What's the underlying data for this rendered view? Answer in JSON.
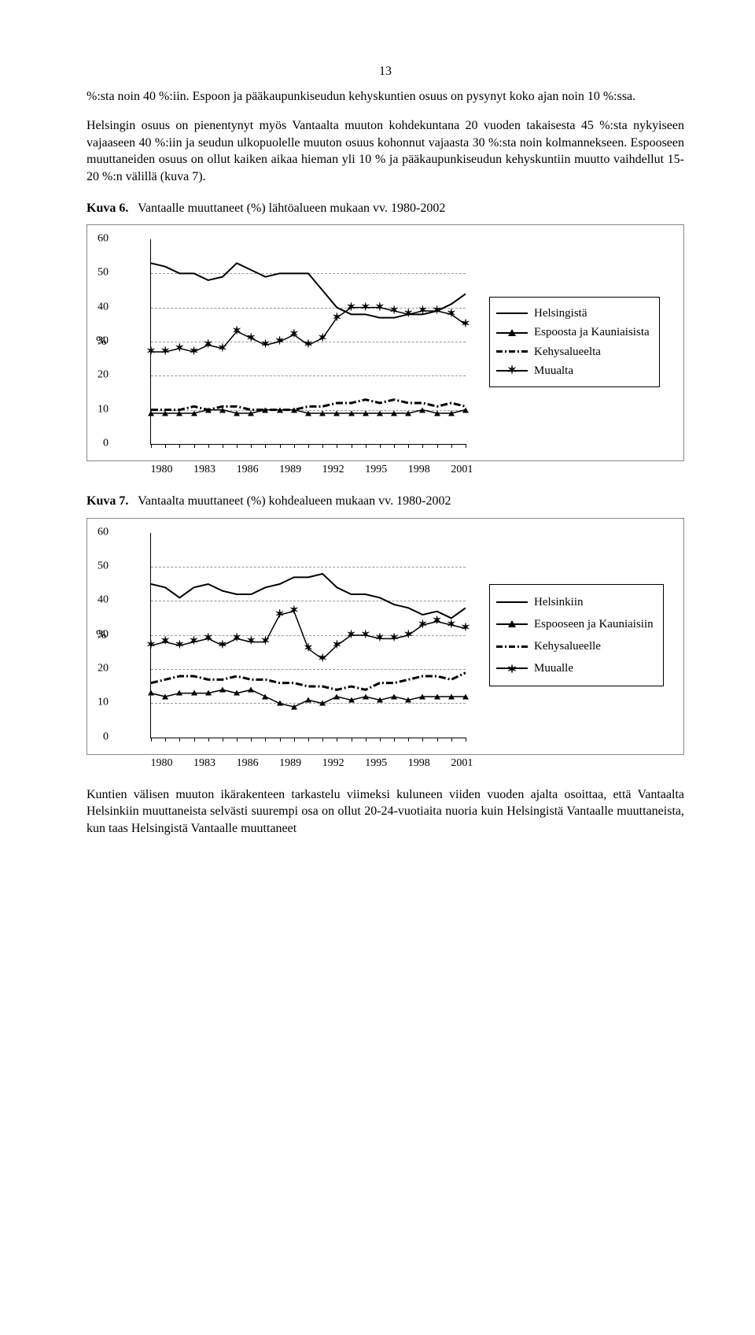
{
  "page_number": "13",
  "para1": "%:sta noin 40 %:iin. Espoon ja pääkaupunkiseudun kehyskuntien osuus on pysynyt koko ajan noin 10 %:ssa.",
  "para2": "Helsingin osuus on pienentynyt myös Vantaalta muuton kohdekuntana 20 vuoden takaisesta 45 %:sta nykyiseen vajaaseen 40 %:iin ja seudun ulkopuolelle muuton osuus kohonnut vajaasta 30 %:sta noin kolmannekseen. Espooseen muuttaneiden osuus on ollut kaiken aikaa hieman yli 10 % ja pääkaupunkiseudun kehyskuntiin muutto vaihdellut 15-20 %:n välillä (kuva 7).",
  "para3": "Kuntien välisen muuton ikärakenteen  tarkastelu viimeksi kuluneen viiden vuoden ajalta osoittaa, että Vantaalta Helsinkiin muuttaneista selvästi suurempi osa on ollut 20-24-vuotiaita nuoria kuin Helsingistä Vantaalle muuttaneista, kun taas Helsingistä Vantaalle muuttaneet",
  "fig6": {
    "label": "Kuva 6.",
    "caption": "Vantaalle muuttaneet (%) lähtöalueen mukaan vv. 1980-2002",
    "ylabel_prefix": "%",
    "ymin": 0,
    "ymax": 60,
    "ystep": 10,
    "xticks": [
      1980,
      1983,
      1986,
      1989,
      1992,
      1995,
      1998,
      2001
    ],
    "xmin": 1980,
    "xmax": 2002,
    "legend": [
      "Helsingistä",
      "Espoosta ja Kauniaisista",
      "Kehysalueelta",
      "Muualta"
    ],
    "series": {
      "helsingista": [
        53,
        52,
        50,
        50,
        48,
        49,
        53,
        51,
        49,
        50,
        50,
        50,
        45,
        40,
        38,
        38,
        37,
        37,
        38,
        38,
        39,
        41,
        44
      ],
      "espoosta": [
        9,
        9,
        9,
        9,
        10,
        10,
        9,
        9,
        10,
        10,
        10,
        9,
        9,
        9,
        9,
        9,
        9,
        9,
        9,
        10,
        9,
        9,
        10
      ],
      "kehys": [
        10,
        10,
        10,
        11,
        10,
        11,
        11,
        10,
        10,
        10,
        10,
        11,
        11,
        12,
        12,
        13,
        12,
        13,
        12,
        12,
        11,
        12,
        11
      ],
      "muualta": [
        27,
        27,
        28,
        27,
        29,
        28,
        33,
        31,
        29,
        30,
        32,
        29,
        31,
        37,
        40,
        40,
        40,
        39,
        38,
        39,
        39,
        38,
        35
      ]
    }
  },
  "fig7": {
    "label": "Kuva 7.",
    "caption": "Vantaalta muuttaneet (%) kohdealueen mukaan vv. 1980-2002",
    "ylabel_prefix": "%",
    "ymin": 0,
    "ymax": 60,
    "ystep": 10,
    "xticks": [
      1980,
      1983,
      1986,
      1989,
      1992,
      1995,
      1998,
      2001
    ],
    "xmin": 1980,
    "xmax": 2002,
    "legend": [
      "Helsinkiin",
      "Espooseen ja Kauniaisiin",
      "Kehysalueelle",
      "Muualle"
    ],
    "series": {
      "helsinkiin": [
        45,
        44,
        41,
        44,
        45,
        43,
        42,
        42,
        44,
        45,
        47,
        47,
        48,
        44,
        42,
        42,
        41,
        39,
        38,
        36,
        37,
        35,
        38
      ],
      "espooseen": [
        13,
        12,
        13,
        13,
        13,
        14,
        13,
        14,
        12,
        10,
        9,
        11,
        10,
        12,
        11,
        12,
        11,
        12,
        11,
        12,
        12,
        12,
        12
      ],
      "kehys": [
        16,
        17,
        18,
        18,
        17,
        17,
        18,
        17,
        17,
        16,
        16,
        15,
        15,
        14,
        15,
        14,
        16,
        16,
        17,
        18,
        18,
        17,
        19
      ],
      "muualle": [
        27,
        28,
        27,
        28,
        29,
        27,
        29,
        28,
        28,
        36,
        37,
        26,
        23,
        27,
        30,
        30,
        29,
        29,
        30,
        33,
        34,
        33,
        32
      ]
    }
  },
  "colors": {
    "line": "#000000",
    "grid": "#999999",
    "border": "#888888"
  }
}
